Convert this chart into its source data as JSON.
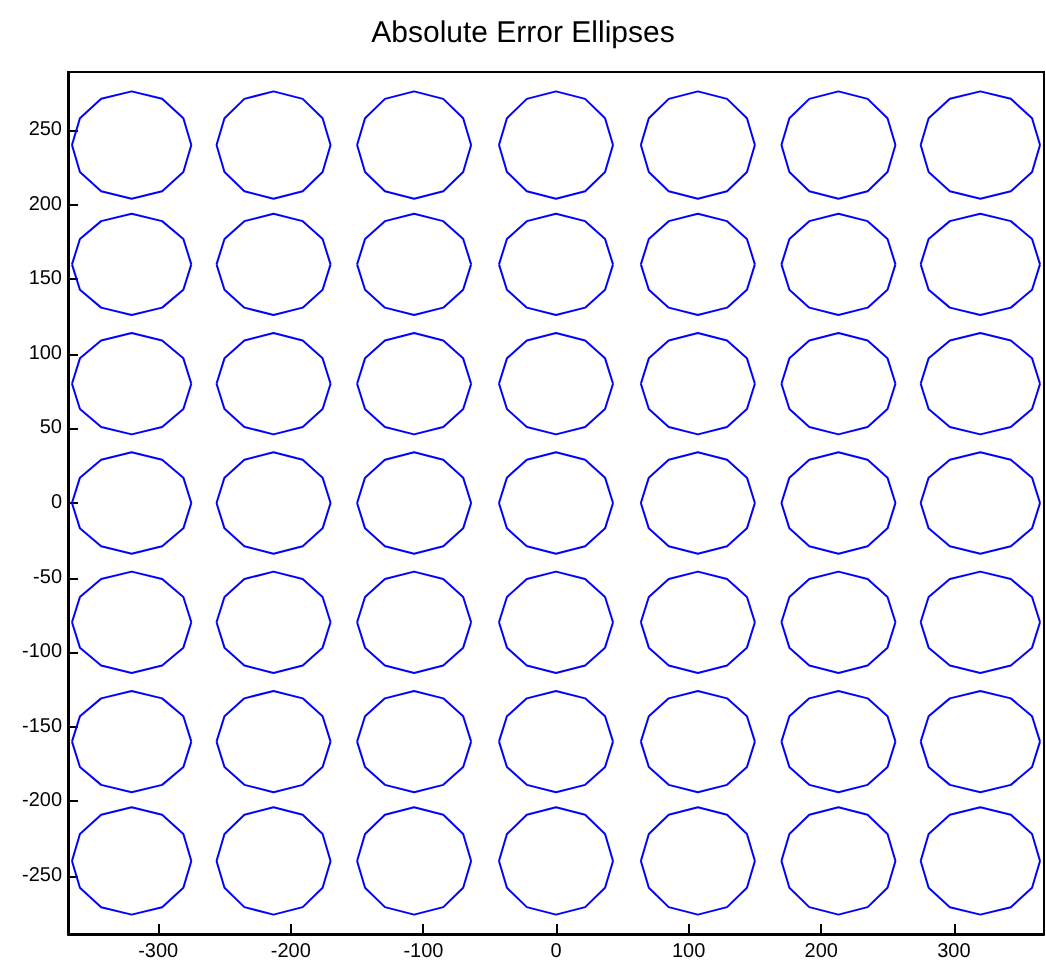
{
  "chart_data": {
    "type": "line",
    "title": "Absolute Error Ellipses",
    "xlim": [
      -368,
      368
    ],
    "ylim": [
      -289,
      289
    ],
    "xticks": [
      -300,
      -200,
      -100,
      0,
      100,
      200,
      300
    ],
    "yticks": [
      -250,
      -200,
      -150,
      -100,
      -50,
      0,
      50,
      100,
      150,
      200,
      250
    ],
    "grid": false,
    "marker": "none",
    "series": [
      {
        "color": "#0000ff",
        "x": [
          -365,
          -359,
          -343,
          -320,
          -297,
          -281,
          -275
        ],
        "values": [
          240,
          258,
          271,
          276,
          271,
          258,
          240
        ]
      },
      {
        "color": "#0000ff",
        "x": [
          -365,
          -359,
          -343,
          -320,
          -297,
          -281,
          -275
        ],
        "values": [
          240,
          222,
          209,
          204,
          209,
          222,
          240
        ]
      },
      {
        "color": "#0000ff",
        "x": [
          -256,
          -250,
          -235,
          -213,
          -191,
          -176,
          -170
        ],
        "values": [
          240,
          258,
          271,
          276,
          271,
          258,
          240
        ]
      },
      {
        "color": "#0000ff",
        "x": [
          -256,
          -250,
          -235,
          -213,
          -191,
          -176,
          -170
        ],
        "values": [
          240,
          222,
          209,
          204,
          209,
          222,
          240
        ]
      },
      {
        "color": "#0000ff",
        "x": [
          -150,
          -144,
          -129,
          -107,
          -85,
          -70,
          -64
        ],
        "values": [
          240,
          258,
          271,
          276,
          271,
          258,
          240
        ]
      },
      {
        "color": "#0000ff",
        "x": [
          -150,
          -144,
          -129,
          -107,
          -85,
          -70,
          -64
        ],
        "values": [
          240,
          222,
          209,
          204,
          209,
          222,
          240
        ]
      },
      {
        "color": "#0000ff",
        "x": [
          -43,
          -37,
          -22,
          0,
          22,
          37,
          43
        ],
        "values": [
          240,
          258,
          271,
          276,
          271,
          258,
          240
        ]
      },
      {
        "color": "#0000ff",
        "x": [
          -43,
          -37,
          -22,
          0,
          22,
          37,
          43
        ],
        "values": [
          240,
          222,
          209,
          204,
          209,
          222,
          240
        ]
      },
      {
        "color": "#0000ff",
        "x": [
          64,
          70,
          85,
          107,
          129,
          144,
          150
        ],
        "values": [
          240,
          258,
          271,
          276,
          271,
          258,
          240
        ]
      },
      {
        "color": "#0000ff",
        "x": [
          64,
          70,
          85,
          107,
          129,
          144,
          150
        ],
        "values": [
          240,
          222,
          209,
          204,
          209,
          222,
          240
        ]
      },
      {
        "color": "#0000ff",
        "x": [
          170,
          176,
          191,
          213,
          235,
          250,
          256
        ],
        "values": [
          240,
          258,
          271,
          276,
          271,
          258,
          240
        ]
      },
      {
        "color": "#0000ff",
        "x": [
          170,
          176,
          191,
          213,
          235,
          250,
          256
        ],
        "values": [
          240,
          222,
          209,
          204,
          209,
          222,
          240
        ]
      },
      {
        "color": "#0000ff",
        "x": [
          275,
          281,
          297,
          320,
          343,
          359,
          365
        ],
        "values": [
          240,
          258,
          271,
          276,
          271,
          258,
          240
        ]
      },
      {
        "color": "#0000ff",
        "x": [
          275,
          281,
          297,
          320,
          343,
          359,
          365
        ],
        "values": [
          240,
          222,
          209,
          204,
          209,
          222,
          240
        ]
      },
      {
        "color": "#0000ff",
        "x": [
          -365,
          -359,
          -343,
          -320,
          -297,
          -281,
          -275
        ],
        "values": [
          160,
          177,
          189,
          194,
          189,
          177,
          160
        ]
      },
      {
        "color": "#0000ff",
        "x": [
          -365,
          -359,
          -343,
          -320,
          -297,
          -281,
          -275
        ],
        "values": [
          160,
          143,
          131,
          126,
          131,
          143,
          160
        ]
      },
      {
        "color": "#0000ff",
        "x": [
          -256,
          -250,
          -235,
          -213,
          -191,
          -176,
          -170
        ],
        "values": [
          160,
          177,
          189,
          194,
          189,
          177,
          160
        ]
      },
      {
        "color": "#0000ff",
        "x": [
          -256,
          -250,
          -235,
          -213,
          -191,
          -176,
          -170
        ],
        "values": [
          160,
          143,
          131,
          126,
          131,
          143,
          160
        ]
      },
      {
        "color": "#0000ff",
        "x": [
          -150,
          -144,
          -129,
          -107,
          -85,
          -70,
          -64
        ],
        "values": [
          160,
          177,
          189,
          194,
          189,
          177,
          160
        ]
      },
      {
        "color": "#0000ff",
        "x": [
          -150,
          -144,
          -129,
          -107,
          -85,
          -70,
          -64
        ],
        "values": [
          160,
          143,
          131,
          126,
          131,
          143,
          160
        ]
      },
      {
        "color": "#0000ff",
        "x": [
          -43,
          -37,
          -22,
          0,
          22,
          37,
          43
        ],
        "values": [
          160,
          177,
          189,
          194,
          189,
          177,
          160
        ]
      },
      {
        "color": "#0000ff",
        "x": [
          -43,
          -37,
          -22,
          0,
          22,
          37,
          43
        ],
        "values": [
          160,
          143,
          131,
          126,
          131,
          143,
          160
        ]
      },
      {
        "color": "#0000ff",
        "x": [
          64,
          70,
          85,
          107,
          129,
          144,
          150
        ],
        "values": [
          160,
          177,
          189,
          194,
          189,
          177,
          160
        ]
      },
      {
        "color": "#0000ff",
        "x": [
          64,
          70,
          85,
          107,
          129,
          144,
          150
        ],
        "values": [
          160,
          143,
          131,
          126,
          131,
          143,
          160
        ]
      },
      {
        "color": "#0000ff",
        "x": [
          170,
          176,
          191,
          213,
          235,
          250,
          256
        ],
        "values": [
          160,
          177,
          189,
          194,
          189,
          177,
          160
        ]
      },
      {
        "color": "#0000ff",
        "x": [
          170,
          176,
          191,
          213,
          235,
          250,
          256
        ],
        "values": [
          160,
          143,
          131,
          126,
          131,
          143,
          160
        ]
      },
      {
        "color": "#0000ff",
        "x": [
          275,
          281,
          297,
          320,
          343,
          359,
          365
        ],
        "values": [
          160,
          177,
          189,
          194,
          189,
          177,
          160
        ]
      },
      {
        "color": "#0000ff",
        "x": [
          275,
          281,
          297,
          320,
          343,
          359,
          365
        ],
        "values": [
          160,
          143,
          131,
          126,
          131,
          143,
          160
        ]
      },
      {
        "color": "#0000ff",
        "x": [
          -365,
          -359,
          -343,
          -320,
          -297,
          -281,
          -275
        ],
        "values": [
          80,
          97,
          109,
          114,
          109,
          97,
          80
        ]
      },
      {
        "color": "#0000ff",
        "x": [
          -365,
          -359,
          -343,
          -320,
          -297,
          -281,
          -275
        ],
        "values": [
          80,
          63,
          51,
          46,
          51,
          63,
          80
        ]
      },
      {
        "color": "#0000ff",
        "x": [
          -256,
          -250,
          -235,
          -213,
          -191,
          -176,
          -170
        ],
        "values": [
          80,
          97,
          109,
          114,
          109,
          97,
          80
        ]
      },
      {
        "color": "#0000ff",
        "x": [
          -256,
          -250,
          -235,
          -213,
          -191,
          -176,
          -170
        ],
        "values": [
          80,
          63,
          51,
          46,
          51,
          63,
          80
        ]
      },
      {
        "color": "#0000ff",
        "x": [
          -150,
          -144,
          -129,
          -107,
          -85,
          -70,
          -64
        ],
        "values": [
          80,
          97,
          109,
          114,
          109,
          97,
          80
        ]
      },
      {
        "color": "#0000ff",
        "x": [
          -150,
          -144,
          -129,
          -107,
          -85,
          -70,
          -64
        ],
        "values": [
          80,
          63,
          51,
          46,
          51,
          63,
          80
        ]
      },
      {
        "color": "#0000ff",
        "x": [
          -43,
          -37,
          -22,
          0,
          22,
          37,
          43
        ],
        "values": [
          80,
          97,
          109,
          114,
          109,
          97,
          80
        ]
      },
      {
        "color": "#0000ff",
        "x": [
          -43,
          -37,
          -22,
          0,
          22,
          37,
          43
        ],
        "values": [
          80,
          63,
          51,
          46,
          51,
          63,
          80
        ]
      },
      {
        "color": "#0000ff",
        "x": [
          64,
          70,
          85,
          107,
          129,
          144,
          150
        ],
        "values": [
          80,
          97,
          109,
          114,
          109,
          97,
          80
        ]
      },
      {
        "color": "#0000ff",
        "x": [
          64,
          70,
          85,
          107,
          129,
          144,
          150
        ],
        "values": [
          80,
          63,
          51,
          46,
          51,
          63,
          80
        ]
      },
      {
        "color": "#0000ff",
        "x": [
          170,
          176,
          191,
          213,
          235,
          250,
          256
        ],
        "values": [
          80,
          97,
          109,
          114,
          109,
          97,
          80
        ]
      },
      {
        "color": "#0000ff",
        "x": [
          170,
          176,
          191,
          213,
          235,
          250,
          256
        ],
        "values": [
          80,
          63,
          51,
          46,
          51,
          63,
          80
        ]
      },
      {
        "color": "#0000ff",
        "x": [
          275,
          281,
          297,
          320,
          343,
          359,
          365
        ],
        "values": [
          80,
          97,
          109,
          114,
          109,
          97,
          80
        ]
      },
      {
        "color": "#0000ff",
        "x": [
          275,
          281,
          297,
          320,
          343,
          359,
          365
        ],
        "values": [
          80,
          63,
          51,
          46,
          51,
          63,
          80
        ]
      },
      {
        "color": "#0000ff",
        "x": [
          -365,
          -359,
          -343,
          -320,
          -297,
          -281,
          -275
        ],
        "values": [
          0,
          17,
          29,
          34,
          29,
          17,
          0
        ]
      },
      {
        "color": "#0000ff",
        "x": [
          -365,
          -359,
          -343,
          -320,
          -297,
          -281,
          -275
        ],
        "values": [
          0,
          -17,
          -29,
          -34,
          -29,
          -17,
          0
        ]
      },
      {
        "color": "#0000ff",
        "x": [
          -256,
          -250,
          -235,
          -213,
          -191,
          -176,
          -170
        ],
        "values": [
          0,
          17,
          29,
          34,
          29,
          17,
          0
        ]
      },
      {
        "color": "#0000ff",
        "x": [
          -256,
          -250,
          -235,
          -213,
          -191,
          -176,
          -170
        ],
        "values": [
          0,
          -17,
          -29,
          -34,
          -29,
          -17,
          0
        ]
      },
      {
        "color": "#0000ff",
        "x": [
          -150,
          -144,
          -129,
          -107,
          -85,
          -70,
          -64
        ],
        "values": [
          0,
          17,
          29,
          34,
          29,
          17,
          0
        ]
      },
      {
        "color": "#0000ff",
        "x": [
          -150,
          -144,
          -129,
          -107,
          -85,
          -70,
          -64
        ],
        "values": [
          0,
          -17,
          -29,
          -34,
          -29,
          -17,
          0
        ]
      },
      {
        "color": "#0000ff",
        "x": [
          -43,
          -37,
          -22,
          0,
          22,
          37,
          43
        ],
        "values": [
          0,
          17,
          29,
          34,
          29,
          17,
          0
        ]
      },
      {
        "color": "#0000ff",
        "x": [
          -43,
          -37,
          -22,
          0,
          22,
          37,
          43
        ],
        "values": [
          0,
          -17,
          -29,
          -34,
          -29,
          -17,
          0
        ]
      },
      {
        "color": "#0000ff",
        "x": [
          64,
          70,
          85,
          107,
          129,
          144,
          150
        ],
        "values": [
          0,
          17,
          29,
          34,
          29,
          17,
          0
        ]
      },
      {
        "color": "#0000ff",
        "x": [
          64,
          70,
          85,
          107,
          129,
          144,
          150
        ],
        "values": [
          0,
          -17,
          -29,
          -34,
          -29,
          -17,
          0
        ]
      },
      {
        "color": "#0000ff",
        "x": [
          170,
          176,
          191,
          213,
          235,
          250,
          256
        ],
        "values": [
          0,
          17,
          29,
          34,
          29,
          17,
          0
        ]
      },
      {
        "color": "#0000ff",
        "x": [
          170,
          176,
          191,
          213,
          235,
          250,
          256
        ],
        "values": [
          0,
          -17,
          -29,
          -34,
          -29,
          -17,
          0
        ]
      },
      {
        "color": "#0000ff",
        "x": [
          275,
          281,
          297,
          320,
          343,
          359,
          365
        ],
        "values": [
          0,
          17,
          29,
          34,
          29,
          17,
          0
        ]
      },
      {
        "color": "#0000ff",
        "x": [
          275,
          281,
          297,
          320,
          343,
          359,
          365
        ],
        "values": [
          0,
          -17,
          -29,
          -34,
          -29,
          -17,
          0
        ]
      },
      {
        "color": "#0000ff",
        "x": [
          -365,
          -359,
          -343,
          -320,
          -297,
          -281,
          -275
        ],
        "values": [
          -80,
          -63,
          -51,
          -46,
          -51,
          -63,
          -80
        ]
      },
      {
        "color": "#0000ff",
        "x": [
          -365,
          -359,
          -343,
          -320,
          -297,
          -281,
          -275
        ],
        "values": [
          -80,
          -97,
          -109,
          -114,
          -109,
          -97,
          -80
        ]
      },
      {
        "color": "#0000ff",
        "x": [
          -256,
          -250,
          -235,
          -213,
          -191,
          -176,
          -170
        ],
        "values": [
          -80,
          -63,
          -51,
          -46,
          -51,
          -63,
          -80
        ]
      },
      {
        "color": "#0000ff",
        "x": [
          -256,
          -250,
          -235,
          -213,
          -191,
          -176,
          -170
        ],
        "values": [
          -80,
          -97,
          -109,
          -114,
          -109,
          -97,
          -80
        ]
      },
      {
        "color": "#0000ff",
        "x": [
          -150,
          -144,
          -129,
          -107,
          -85,
          -70,
          -64
        ],
        "values": [
          -80,
          -63,
          -51,
          -46,
          -51,
          -63,
          -80
        ]
      },
      {
        "color": "#0000ff",
        "x": [
          -150,
          -144,
          -129,
          -107,
          -85,
          -70,
          -64
        ],
        "values": [
          -80,
          -97,
          -109,
          -114,
          -109,
          -97,
          -80
        ]
      },
      {
        "color": "#0000ff",
        "x": [
          -43,
          -37,
          -22,
          0,
          22,
          37,
          43
        ],
        "values": [
          -80,
          -63,
          -51,
          -46,
          -51,
          -63,
          -80
        ]
      },
      {
        "color": "#0000ff",
        "x": [
          -43,
          -37,
          -22,
          0,
          22,
          37,
          43
        ],
        "values": [
          -80,
          -97,
          -109,
          -114,
          -109,
          -97,
          -80
        ]
      },
      {
        "color": "#0000ff",
        "x": [
          64,
          70,
          85,
          107,
          129,
          144,
          150
        ],
        "values": [
          -80,
          -63,
          -51,
          -46,
          -51,
          -63,
          -80
        ]
      },
      {
        "color": "#0000ff",
        "x": [
          64,
          70,
          85,
          107,
          129,
          144,
          150
        ],
        "values": [
          -80,
          -97,
          -109,
          -114,
          -109,
          -97,
          -80
        ]
      },
      {
        "color": "#0000ff",
        "x": [
          170,
          176,
          191,
          213,
          235,
          250,
          256
        ],
        "values": [
          -80,
          -63,
          -51,
          -46,
          -51,
          -63,
          -80
        ]
      },
      {
        "color": "#0000ff",
        "x": [
          170,
          176,
          191,
          213,
          235,
          250,
          256
        ],
        "values": [
          -80,
          -97,
          -109,
          -114,
          -109,
          -97,
          -80
        ]
      },
      {
        "color": "#0000ff",
        "x": [
          275,
          281,
          297,
          320,
          343,
          359,
          365
        ],
        "values": [
          -80,
          -63,
          -51,
          -46,
          -51,
          -63,
          -80
        ]
      },
      {
        "color": "#0000ff",
        "x": [
          275,
          281,
          297,
          320,
          343,
          359,
          365
        ],
        "values": [
          -80,
          -97,
          -109,
          -114,
          -109,
          -97,
          -80
        ]
      },
      {
        "color": "#0000ff",
        "x": [
          -365,
          -359,
          -343,
          -320,
          -297,
          -281,
          -275
        ],
        "values": [
          -160,
          -143,
          -131,
          -126,
          -131,
          -143,
          -160
        ]
      },
      {
        "color": "#0000ff",
        "x": [
          -365,
          -359,
          -343,
          -320,
          -297,
          -281,
          -275
        ],
        "values": [
          -160,
          -177,
          -189,
          -194,
          -189,
          -177,
          -160
        ]
      },
      {
        "color": "#0000ff",
        "x": [
          -256,
          -250,
          -235,
          -213,
          -191,
          -176,
          -170
        ],
        "values": [
          -160,
          -143,
          -131,
          -126,
          -131,
          -143,
          -160
        ]
      },
      {
        "color": "#0000ff",
        "x": [
          -256,
          -250,
          -235,
          -213,
          -191,
          -176,
          -170
        ],
        "values": [
          -160,
          -177,
          -189,
          -194,
          -189,
          -177,
          -160
        ]
      },
      {
        "color": "#0000ff",
        "x": [
          -150,
          -144,
          -129,
          -107,
          -85,
          -70,
          -64
        ],
        "values": [
          -160,
          -143,
          -131,
          -126,
          -131,
          -143,
          -160
        ]
      },
      {
        "color": "#0000ff",
        "x": [
          -150,
          -144,
          -129,
          -107,
          -85,
          -70,
          -64
        ],
        "values": [
          -160,
          -177,
          -189,
          -194,
          -189,
          -177,
          -160
        ]
      },
      {
        "color": "#0000ff",
        "x": [
          -43,
          -37,
          -22,
          0,
          22,
          37,
          43
        ],
        "values": [
          -160,
          -143,
          -131,
          -126,
          -131,
          -143,
          -160
        ]
      },
      {
        "color": "#0000ff",
        "x": [
          -43,
          -37,
          -22,
          0,
          22,
          37,
          43
        ],
        "values": [
          -160,
          -177,
          -189,
          -194,
          -189,
          -177,
          -160
        ]
      },
      {
        "color": "#0000ff",
        "x": [
          64,
          70,
          85,
          107,
          129,
          144,
          150
        ],
        "values": [
          -160,
          -143,
          -131,
          -126,
          -131,
          -143,
          -160
        ]
      },
      {
        "color": "#0000ff",
        "x": [
          64,
          70,
          85,
          107,
          129,
          144,
          150
        ],
        "values": [
          -160,
          -177,
          -189,
          -194,
          -189,
          -177,
          -160
        ]
      },
      {
        "color": "#0000ff",
        "x": [
          170,
          176,
          191,
          213,
          235,
          250,
          256
        ],
        "values": [
          -160,
          -143,
          -131,
          -126,
          -131,
          -143,
          -160
        ]
      },
      {
        "color": "#0000ff",
        "x": [
          170,
          176,
          191,
          213,
          235,
          250,
          256
        ],
        "values": [
          -160,
          -177,
          -189,
          -194,
          -189,
          -177,
          -160
        ]
      },
      {
        "color": "#0000ff",
        "x": [
          275,
          281,
          297,
          320,
          343,
          359,
          365
        ],
        "values": [
          -160,
          -143,
          -131,
          -126,
          -131,
          -143,
          -160
        ]
      },
      {
        "color": "#0000ff",
        "x": [
          275,
          281,
          297,
          320,
          343,
          359,
          365
        ],
        "values": [
          -160,
          -177,
          -189,
          -194,
          -189,
          -177,
          -160
        ]
      },
      {
        "color": "#0000ff",
        "x": [
          -365,
          -359,
          -343,
          -320,
          -297,
          -281,
          -275
        ],
        "values": [
          -240,
          -222,
          -209,
          -204,
          -209,
          -222,
          -240
        ]
      },
      {
        "color": "#0000ff",
        "x": [
          -365,
          -359,
          -343,
          -320,
          -297,
          -281,
          -275
        ],
        "values": [
          -240,
          -258,
          -271,
          -276,
          -271,
          -258,
          -240
        ]
      },
      {
        "color": "#0000ff",
        "x": [
          -256,
          -250,
          -235,
          -213,
          -191,
          -176,
          -170
        ],
        "values": [
          -240,
          -222,
          -209,
          -204,
          -209,
          -222,
          -240
        ]
      },
      {
        "color": "#0000ff",
        "x": [
          -256,
          -250,
          -235,
          -213,
          -191,
          -176,
          -170
        ],
        "values": [
          -240,
          -258,
          -271,
          -276,
          -271,
          -258,
          -240
        ]
      },
      {
        "color": "#0000ff",
        "x": [
          -150,
          -144,
          -129,
          -107,
          -85,
          -70,
          -64
        ],
        "values": [
          -240,
          -222,
          -209,
          -204,
          -209,
          -222,
          -240
        ]
      },
      {
        "color": "#0000ff",
        "x": [
          -150,
          -144,
          -129,
          -107,
          -85,
          -70,
          -64
        ],
        "values": [
          -240,
          -258,
          -271,
          -276,
          -271,
          -258,
          -240
        ]
      },
      {
        "color": "#0000ff",
        "x": [
          -43,
          -37,
          -22,
          0,
          22,
          37,
          43
        ],
        "values": [
          -240,
          -222,
          -209,
          -204,
          -209,
          -222,
          -240
        ]
      },
      {
        "color": "#0000ff",
        "x": [
          -43,
          -37,
          -22,
          0,
          22,
          37,
          43
        ],
        "values": [
          -240,
          -258,
          -271,
          -276,
          -271,
          -258,
          -240
        ]
      },
      {
        "color": "#0000ff",
        "x": [
          64,
          70,
          85,
          107,
          129,
          144,
          150
        ],
        "values": [
          -240,
          -222,
          -209,
          -204,
          -209,
          -222,
          -240
        ]
      },
      {
        "color": "#0000ff",
        "x": [
          64,
          70,
          85,
          107,
          129,
          144,
          150
        ],
        "values": [
          -240,
          -258,
          -271,
          -276,
          -271,
          -258,
          -240
        ]
      },
      {
        "color": "#0000ff",
        "x": [
          170,
          176,
          191,
          213,
          235,
          250,
          256
        ],
        "values": [
          -240,
          -222,
          -209,
          -204,
          -209,
          -222,
          -240
        ]
      },
      {
        "color": "#0000ff",
        "x": [
          170,
          176,
          191,
          213,
          235,
          250,
          256
        ],
        "values": [
          -240,
          -258,
          -271,
          -276,
          -271,
          -258,
          -240
        ]
      },
      {
        "color": "#0000ff",
        "x": [
          275,
          281,
          297,
          320,
          343,
          359,
          365
        ],
        "values": [
          -240,
          -222,
          -209,
          -204,
          -209,
          -222,
          -240
        ]
      },
      {
        "color": "#0000ff",
        "x": [
          275,
          281,
          297,
          320,
          343,
          359,
          365
        ],
        "values": [
          -240,
          -258,
          -271,
          -276,
          -271,
          -258,
          -240
        ]
      }
    ]
  }
}
